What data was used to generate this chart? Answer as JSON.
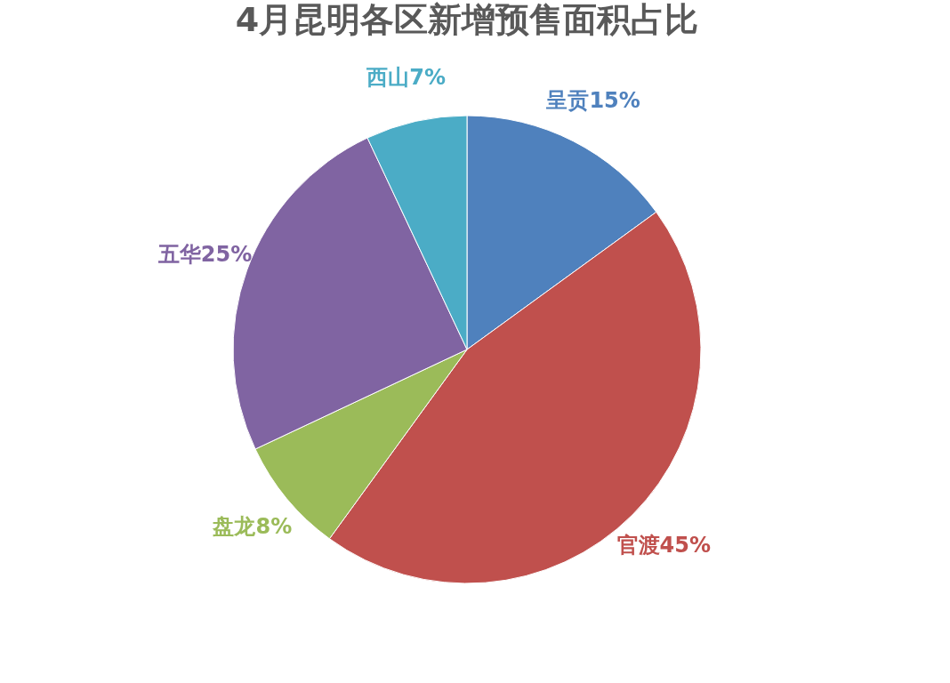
{
  "chart_data": {
    "type": "pie",
    "title": "4月昆明各区新增预售面积占比",
    "categories": [
      "呈贡",
      "官渡",
      "盘龙",
      "五华",
      "西山"
    ],
    "values": [
      15,
      45,
      8,
      25,
      7
    ],
    "value_labels": [
      "15%",
      "45%",
      "8%",
      "25%",
      "7%"
    ],
    "colors": [
      "#4f81bd",
      "#c0504d",
      "#9bbb59",
      "#8064a2",
      "#4bacc6"
    ]
  }
}
